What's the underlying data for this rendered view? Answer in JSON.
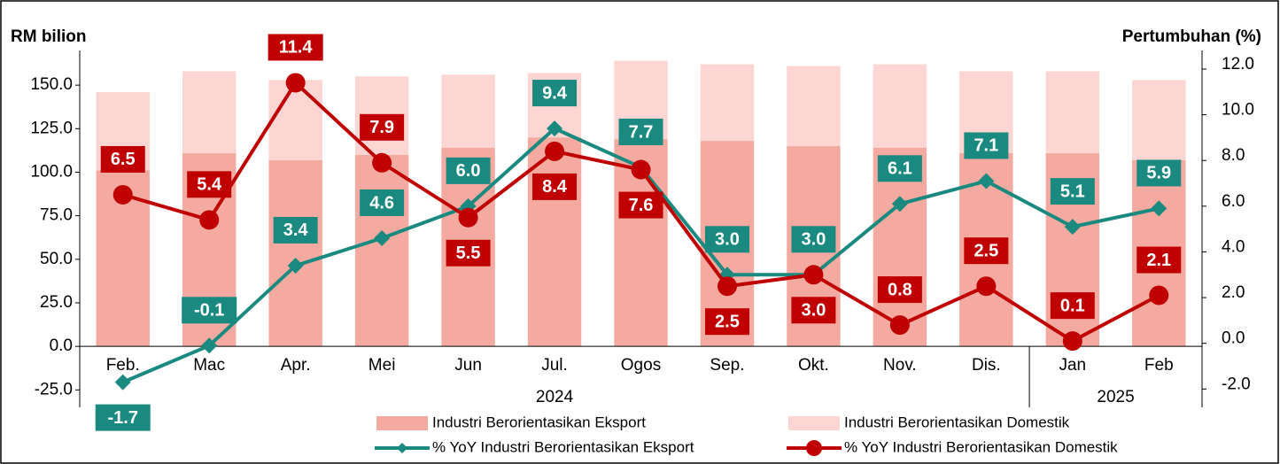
{
  "chart_data": {
    "type": "bar",
    "ylabel": "RM bilion",
    "y2label": "Pertumbuhan (%)",
    "categories": [
      "Feb.",
      "Mac",
      "Apr.",
      "Mei",
      "Jun",
      "Jul.",
      "Ogos",
      "Sep.",
      "Okt.",
      "Nov.",
      "Dis.",
      "Jan",
      "Feb"
    ],
    "years": [
      {
        "name": "2024",
        "count": 11
      },
      {
        "name": "2025",
        "count": 2
      }
    ],
    "stacked": true,
    "series": [
      {
        "name": "Industri Berorientasikan Eksport",
        "type": "bar",
        "color": "#f4aaa0",
        "values": [
          101,
          111,
          107,
          110,
          114,
          120,
          119,
          118,
          115,
          114,
          111,
          111,
          107
        ]
      },
      {
        "name": "Industri Berorientasikan Domestik",
        "type": "bar",
        "color": "#fdd5d2",
        "values": [
          45,
          47,
          46,
          45,
          42,
          37,
          45,
          44,
          46,
          48,
          47,
          47,
          46
        ]
      },
      {
        "name": "% YoY Industri Berorientasikan Eksport",
        "type": "line",
        "axis": "y2",
        "color": "#1a8a80",
        "marker": "diamond",
        "values": [
          -1.7,
          -0.1,
          3.4,
          4.6,
          6.0,
          9.4,
          7.7,
          3.0,
          3.0,
          6.1,
          7.1,
          5.1,
          5.9
        ],
        "value_labels": [
          "-1.7",
          "-0.1",
          "3.4",
          "4.6",
          "6.0",
          "9.4",
          "7.7",
          "3.0",
          "3.0",
          "6.1",
          "7.1",
          "5.1",
          "5.9"
        ]
      },
      {
        "name": "% YoY Industri Berorientasikan Domestik",
        "type": "line",
        "axis": "y2",
        "color": "#c00000",
        "marker": "circle",
        "values": [
          6.5,
          5.4,
          11.4,
          7.9,
          5.5,
          8.4,
          7.6,
          2.5,
          3.0,
          0.8,
          2.5,
          0.1,
          2.1
        ],
        "value_labels": [
          "6.5",
          "5.4",
          "11.4",
          "7.9",
          "5.5",
          "8.4",
          "7.6",
          "2.5",
          "3.0",
          "0.8",
          "2.5",
          "0.1",
          "2.1"
        ]
      }
    ],
    "ylim": [
      -35,
      175
    ],
    "yticks": [
      {
        "value": -25,
        "label": "-25.0"
      },
      {
        "value": 0,
        "label": "0.0"
      },
      {
        "value": 25,
        "label": "25.0"
      },
      {
        "value": 50,
        "label": "50.0"
      },
      {
        "value": 75,
        "label": "75.0"
      },
      {
        "value": 100,
        "label": "100.0"
      },
      {
        "value": 125,
        "label": "125.0"
      },
      {
        "value": 150,
        "label": "150.0"
      }
    ],
    "y2lim": [
      -2.8,
      13.2
    ],
    "y2ticks": [
      {
        "value": -2,
        "label": "-2.0"
      },
      {
        "value": 0,
        "label": "0.0"
      },
      {
        "value": 2,
        "label": "2.0"
      },
      {
        "value": 4,
        "label": "4.0"
      },
      {
        "value": 6,
        "label": "6.0"
      },
      {
        "value": 8,
        "label": "8.0"
      },
      {
        "value": 10,
        "label": "10.0"
      },
      {
        "value": 12,
        "label": "12.0"
      }
    ],
    "grid": false
  }
}
